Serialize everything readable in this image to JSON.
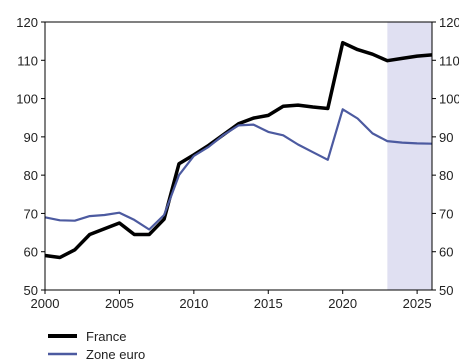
{
  "chart_data": {
    "type": "line",
    "title": "",
    "xlabel": "",
    "ylabel": "",
    "xlim": [
      2000,
      2026
    ],
    "ylim": [
      50,
      120
    ],
    "y_ticks": [
      "50",
      "60",
      "70",
      "80",
      "90",
      "100",
      "110",
      "120"
    ],
    "y_ticks_right": [
      "50",
      "60",
      "70",
      "80",
      "90",
      "100",
      "110",
      "120"
    ],
    "x_ticks": [
      "2000",
      "2005",
      "2010",
      "2015",
      "2020",
      "2025"
    ],
    "grid": false,
    "shaded_region": {
      "x_start": 2023,
      "x_end": 2026,
      "color": "#e0e0f2"
    },
    "legend_position": "bottom-left",
    "series": [
      {
        "name": "France",
        "color": "#000000",
        "x": [
          2000,
          2001,
          2002,
          2003,
          2004,
          2005,
          2006,
          2007,
          2008,
          2009,
          2010,
          2011,
          2012,
          2013,
          2014,
          2015,
          2016,
          2017,
          2018,
          2019,
          2020,
          2021,
          2022,
          2023,
          2024,
          2025,
          2026
        ],
        "values": [
          59,
          58.5,
          60.5,
          64.5,
          66,
          67.5,
          64.5,
          64.5,
          68.5,
          83,
          85.3,
          87.8,
          90.6,
          93.4,
          94.9,
          95.6,
          98,
          98.3,
          97.8,
          97.4,
          114.6,
          112.8,
          111.6,
          109.9,
          110.5,
          111.1,
          111.4
        ]
      },
      {
        "name": "Zone euro",
        "color": "#4c5aa0",
        "x": [
          2000,
          2001,
          2002,
          2003,
          2004,
          2005,
          2006,
          2007,
          2008,
          2009,
          2010,
          2011,
          2012,
          2013,
          2014,
          2015,
          2016,
          2017,
          2018,
          2019,
          2020,
          2021,
          2022,
          2023,
          2024,
          2025,
          2026
        ],
        "values": [
          69,
          68.2,
          68.1,
          69.3,
          69.6,
          70.2,
          68.3,
          65.8,
          69.6,
          80,
          85,
          87.4,
          90.5,
          93,
          93.2,
          91.3,
          90.4,
          88,
          86,
          84,
          97.2,
          94.8,
          90.9,
          88.9,
          88.5,
          88.3,
          88.2
        ]
      }
    ]
  }
}
